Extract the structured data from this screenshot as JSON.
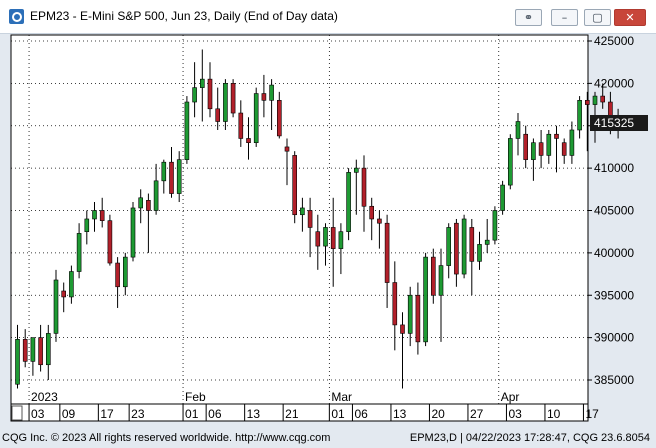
{
  "window": {
    "title": "EPM23 - E-Mini S&P 500, Jun 23, Daily (End of Day data)",
    "buttons": {
      "link_icon": "link-icon",
      "minimize_icon": "minimize-icon",
      "maximize_icon": "maximize-icon",
      "close_icon": "close-icon"
    }
  },
  "status": {
    "left": "CQG Inc. © 2023 All rights reserved worldwide. http://www.cqg.com",
    "right": "EPM23,D | 04/22/2023 17:28:47, CQG 23.6.8054"
  },
  "colors": {
    "up": "#1e9a33",
    "down": "#b2202a",
    "wick": "#000000",
    "grid": "#000000",
    "last_price_bg": "#1a1a1a"
  },
  "chart_data": {
    "type": "candlestick",
    "price_scale": "right",
    "ylim": [
      383500,
      426000
    ],
    "y_ticks": [
      {
        "value": 425000,
        "label": "425000"
      },
      {
        "value": 420000,
        "label": "420000"
      },
      {
        "value": 415000,
        "label": "415000"
      },
      {
        "value": 410000,
        "label": "410000"
      },
      {
        "value": 405000,
        "label": "405000"
      },
      {
        "value": 400000,
        "label": "400000"
      },
      {
        "value": 395000,
        "label": "395000"
      },
      {
        "value": 390000,
        "label": "390000"
      },
      {
        "value": 385000,
        "label": "385000"
      }
    ],
    "last_price": {
      "value": 415325,
      "label": "415325"
    },
    "months": [
      {
        "label": "2023",
        "index": 2
      },
      {
        "label": "Feb",
        "index": 22
      },
      {
        "label": "Mar",
        "index": 41
      },
      {
        "label": "Apr",
        "index": 63
      }
    ],
    "days": [
      {
        "label": "03",
        "index": 2
      },
      {
        "label": "09",
        "index": 6
      },
      {
        "label": "17",
        "index": 11
      },
      {
        "label": "23",
        "index": 15
      },
      {
        "label": "01",
        "index": 22
      },
      {
        "label": "06",
        "index": 25
      },
      {
        "label": "13",
        "index": 30
      },
      {
        "label": "21",
        "index": 35
      },
      {
        "label": "01",
        "index": 41
      },
      {
        "label": "06",
        "index": 44
      },
      {
        "label": "13",
        "index": 49
      },
      {
        "label": "20",
        "index": 54
      },
      {
        "label": "27",
        "index": 59
      },
      {
        "label": "03",
        "index": 64
      },
      {
        "label": "10",
        "index": 69
      },
      {
        "label": "17",
        "index": 74
      }
    ],
    "candles": [
      {
        "o": 384500,
        "h": 391500,
        "l": 384000,
        "c": 389800
      },
      {
        "o": 389800,
        "h": 391000,
        "l": 386500,
        "c": 387200
      },
      {
        "o": 387200,
        "h": 390000,
        "l": 385500,
        "c": 390000
      },
      {
        "o": 390000,
        "h": 391500,
        "l": 386000,
        "c": 386800
      },
      {
        "o": 386800,
        "h": 391500,
        "l": 385000,
        "c": 390500
      },
      {
        "o": 390500,
        "h": 398000,
        "l": 389500,
        "c": 396800
      },
      {
        "o": 395500,
        "h": 396500,
        "l": 393000,
        "c": 394800
      },
      {
        "o": 394800,
        "h": 398500,
        "l": 394000,
        "c": 397800
      },
      {
        "o": 397800,
        "h": 403500,
        "l": 397000,
        "c": 402300
      },
      {
        "o": 402500,
        "h": 405000,
        "l": 401000,
        "c": 404000
      },
      {
        "o": 404000,
        "h": 406000,
        "l": 402500,
        "c": 405000
      },
      {
        "o": 405000,
        "h": 406500,
        "l": 403000,
        "c": 403800
      },
      {
        "o": 403800,
        "h": 404500,
        "l": 398500,
        "c": 398800
      },
      {
        "o": 398800,
        "h": 399500,
        "l": 393500,
        "c": 396000
      },
      {
        "o": 396000,
        "h": 400000,
        "l": 395000,
        "c": 399500
      },
      {
        "o": 399500,
        "h": 406000,
        "l": 399000,
        "c": 405300
      },
      {
        "o": 405300,
        "h": 407500,
        "l": 403500,
        "c": 406500
      },
      {
        "o": 406200,
        "h": 407000,
        "l": 400000,
        "c": 405000
      },
      {
        "o": 405000,
        "h": 410500,
        "l": 404500,
        "c": 408500
      },
      {
        "o": 408500,
        "h": 411000,
        "l": 407000,
        "c": 410700
      },
      {
        "o": 410700,
        "h": 412500,
        "l": 406500,
        "c": 407000
      },
      {
        "o": 407000,
        "h": 412000,
        "l": 406000,
        "c": 411000
      },
      {
        "o": 411000,
        "h": 418500,
        "l": 410500,
        "c": 417800
      },
      {
        "o": 417800,
        "h": 422500,
        "l": 416000,
        "c": 419500
      },
      {
        "o": 419500,
        "h": 424000,
        "l": 415500,
        "c": 420500
      },
      {
        "o": 420500,
        "h": 422500,
        "l": 416000,
        "c": 417000
      },
      {
        "o": 417000,
        "h": 419500,
        "l": 414500,
        "c": 415500
      },
      {
        "o": 415500,
        "h": 420500,
        "l": 414500,
        "c": 420000
      },
      {
        "o": 420000,
        "h": 420500,
        "l": 416000,
        "c": 416500
      },
      {
        "o": 416500,
        "h": 418000,
        "l": 412500,
        "c": 413500
      },
      {
        "o": 413500,
        "h": 416000,
        "l": 411000,
        "c": 413000
      },
      {
        "o": 413000,
        "h": 419500,
        "l": 412500,
        "c": 418800
      },
      {
        "o": 418800,
        "h": 421000,
        "l": 416000,
        "c": 418000
      },
      {
        "o": 418000,
        "h": 420500,
        "l": 414500,
        "c": 419800
      },
      {
        "o": 418000,
        "h": 419000,
        "l": 413500,
        "c": 413800
      },
      {
        "o": 412500,
        "h": 413500,
        "l": 408000,
        "c": 412000
      },
      {
        "o": 411500,
        "h": 412000,
        "l": 403500,
        "c": 404500
      },
      {
        "o": 404500,
        "h": 406500,
        "l": 402500,
        "c": 405300
      },
      {
        "o": 405000,
        "h": 406500,
        "l": 399500,
        "c": 403000
      },
      {
        "o": 402500,
        "h": 404500,
        "l": 398000,
        "c": 400800
      },
      {
        "o": 400800,
        "h": 403500,
        "l": 398500,
        "c": 403000
      },
      {
        "o": 403000,
        "h": 406500,
        "l": 396000,
        "c": 400500
      },
      {
        "o": 400500,
        "h": 403500,
        "l": 397500,
        "c": 402500
      },
      {
        "o": 402500,
        "h": 410000,
        "l": 401500,
        "c": 409500
      },
      {
        "o": 409500,
        "h": 411000,
        "l": 404500,
        "c": 410000
      },
      {
        "o": 410000,
        "h": 411500,
        "l": 402500,
        "c": 405500
      },
      {
        "o": 405500,
        "h": 406500,
        "l": 401500,
        "c": 404000
      },
      {
        "o": 404000,
        "h": 405000,
        "l": 400500,
        "c": 403500
      },
      {
        "o": 403500,
        "h": 404500,
        "l": 393500,
        "c": 396500
      },
      {
        "o": 396500,
        "h": 399000,
        "l": 388500,
        "c": 391500
      },
      {
        "o": 391500,
        "h": 393000,
        "l": 384000,
        "c": 390500
      },
      {
        "o": 390500,
        "h": 396000,
        "l": 389000,
        "c": 395000
      },
      {
        "o": 395000,
        "h": 396500,
        "l": 388000,
        "c": 389500
      },
      {
        "o": 389500,
        "h": 400000,
        "l": 389000,
        "c": 399500
      },
      {
        "o": 399500,
        "h": 400500,
        "l": 394000,
        "c": 395000
      },
      {
        "o": 395000,
        "h": 400500,
        "l": 389500,
        "c": 398500
      },
      {
        "o": 398500,
        "h": 403500,
        "l": 397000,
        "c": 403000
      },
      {
        "o": 403500,
        "h": 404000,
        "l": 396000,
        "c": 397500
      },
      {
        "o": 397500,
        "h": 404500,
        "l": 397000,
        "c": 404000
      },
      {
        "o": 403000,
        "h": 404000,
        "l": 395000,
        "c": 399000
      },
      {
        "o": 399000,
        "h": 402500,
        "l": 398000,
        "c": 401000
      },
      {
        "o": 401000,
        "h": 404000,
        "l": 400000,
        "c": 401500
      },
      {
        "o": 401500,
        "h": 405500,
        "l": 401000,
        "c": 405000
      },
      {
        "o": 405000,
        "h": 408500,
        "l": 404500,
        "c": 408000
      },
      {
        "o": 408000,
        "h": 414000,
        "l": 407500,
        "c": 413500
      },
      {
        "o": 413500,
        "h": 416500,
        "l": 411500,
        "c": 415500
      },
      {
        "o": 414000,
        "h": 415000,
        "l": 410000,
        "c": 411000
      },
      {
        "o": 411000,
        "h": 413500,
        "l": 408500,
        "c": 413000
      },
      {
        "o": 413000,
        "h": 414500,
        "l": 410000,
        "c": 411500
      },
      {
        "o": 411500,
        "h": 414500,
        "l": 410500,
        "c": 414000
      },
      {
        "o": 414000,
        "h": 415000,
        "l": 409500,
        "c": 413500
      },
      {
        "o": 413000,
        "h": 413500,
        "l": 410500,
        "c": 411500
      },
      {
        "o": 411500,
        "h": 415500,
        "l": 410500,
        "c": 414500
      },
      {
        "o": 414500,
        "h": 418500,
        "l": 413500,
        "c": 418000
      },
      {
        "o": 418000,
        "h": 419000,
        "l": 412000,
        "c": 417500
      },
      {
        "o": 417500,
        "h": 419000,
        "l": 413000,
        "c": 418500
      },
      {
        "o": 418500,
        "h": 420000,
        "l": 417000,
        "c": 417800
      },
      {
        "o": 417800,
        "h": 419000,
        "l": 414000,
        "c": 415500
      },
      {
        "o": 415500,
        "h": 417000,
        "l": 413500,
        "c": 415300
      }
    ]
  }
}
